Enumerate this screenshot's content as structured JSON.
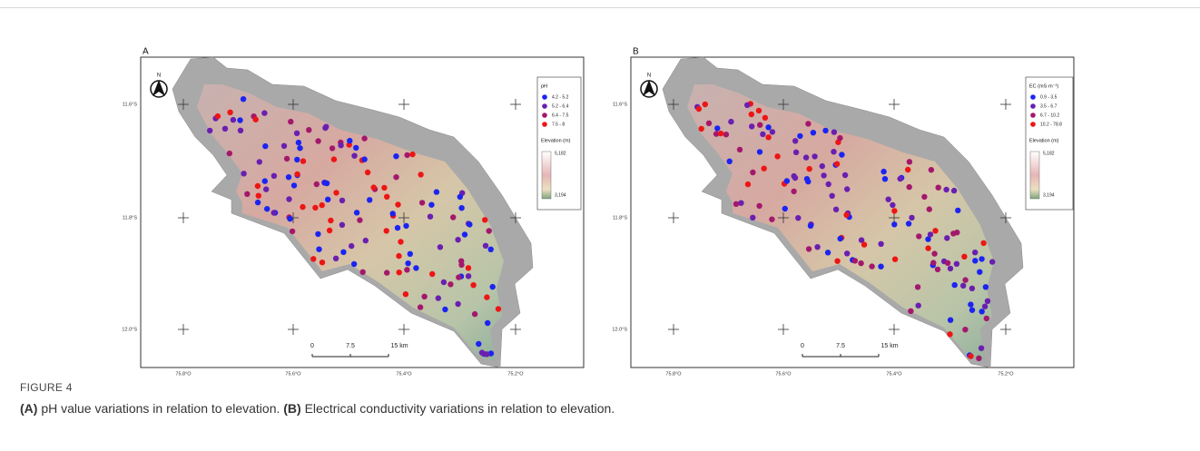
{
  "panels": [
    {
      "label": "A",
      "north": "N",
      "legend": {
        "title": "pH",
        "items": [
          {
            "label": "4.2 - 5.2",
            "color": "#1b24f2"
          },
          {
            "label": "5.2 - 6.4",
            "color": "#6a1fb0"
          },
          {
            "label": "6.4 - 7.5",
            "color": "#a3186c"
          },
          {
            "label": "7.5 - 8",
            "color": "#ee1515"
          }
        ]
      },
      "elevation": {
        "title": "Elevation (m)",
        "max": "5,182",
        "min": "3,194"
      },
      "lat_labels": [
        "11.6°S",
        "11.8°S",
        "12.0°S"
      ],
      "lon_labels": [
        "75.8°O",
        "75.6°O",
        "75.4°O",
        "75.2°O"
      ],
      "scale_labels": [
        "0",
        "7.5",
        "15 km"
      ]
    },
    {
      "label": "B",
      "north": "N",
      "legend": {
        "title": "EC (mS·m⁻¹)",
        "items": [
          {
            "label": "0.9 - 3.5",
            "color": "#1b24f2"
          },
          {
            "label": "3.5 - 6.7",
            "color": "#6a1fb0"
          },
          {
            "label": "6.7 - 10.2",
            "color": "#a3186c"
          },
          {
            "label": "10.2 - 78.8",
            "color": "#ee1515"
          }
        ]
      },
      "elevation": {
        "title": "Elevation (m)",
        "max": "5,182",
        "min": "3,194"
      },
      "lat_labels": [
        "11.6°S",
        "11.8°S",
        "12.0°S"
      ],
      "lon_labels": [
        "75.8°O",
        "75.6°O",
        "75.4°O",
        "75.2°O"
      ],
      "scale_labels": [
        "0",
        "7.5",
        "15 km"
      ]
    }
  ],
  "caption": {
    "figure": "FIGURE 4",
    "parts": [
      {
        "tag": "(A)",
        "text": " pH value variations in relation to elevation."
      },
      {
        "tag": "(B)",
        "text": " Electrical conductivity variations in relation to elevation."
      }
    ]
  }
}
